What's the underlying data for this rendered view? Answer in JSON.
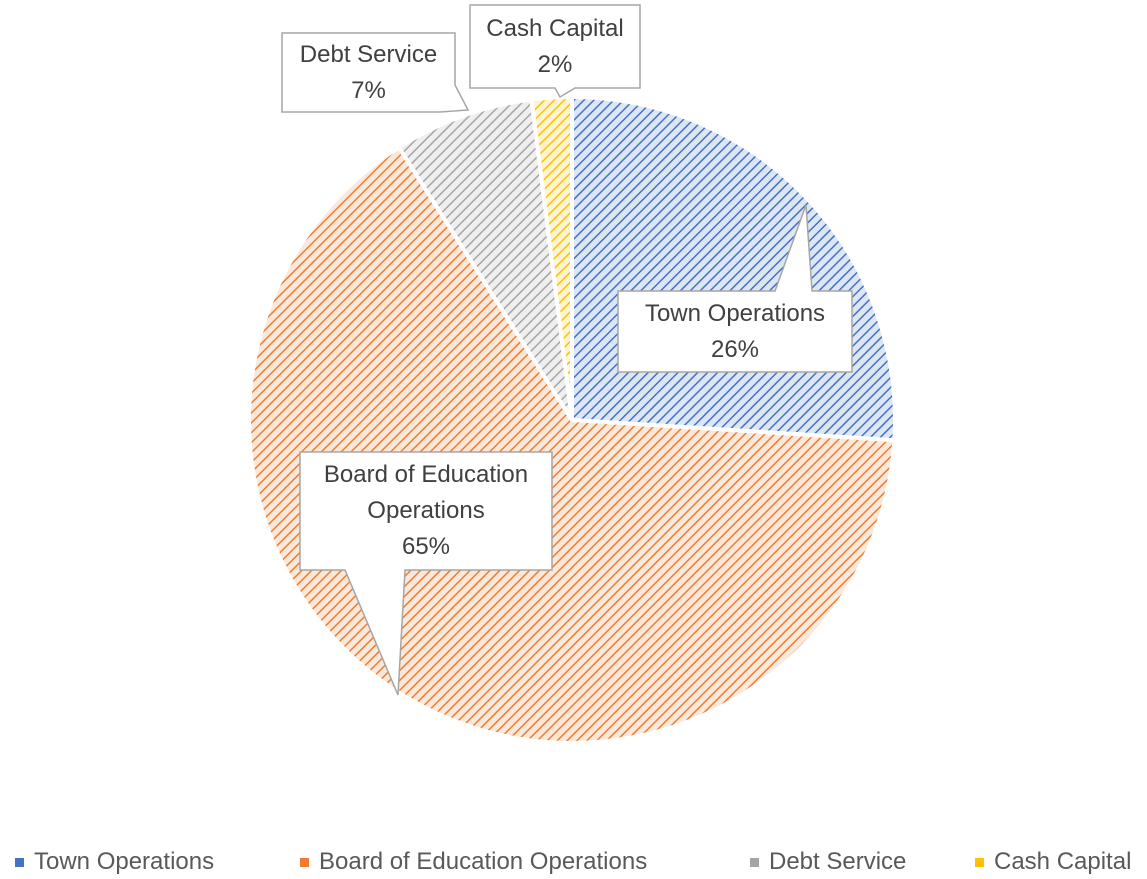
{
  "chart_data": {
    "type": "pie",
    "categories": [
      "Town Operations",
      "Board of Education Operations",
      "Debt Service",
      "Cash Capital"
    ],
    "values": [
      26,
      65,
      7,
      2
    ],
    "value_labels": [
      "26%",
      "65%",
      "7%",
      "2%"
    ],
    "colors": [
      "#4472c4",
      "#ed7d31",
      "#a5a5a5",
      "#ffc000"
    ],
    "legend": "bottom"
  }
}
